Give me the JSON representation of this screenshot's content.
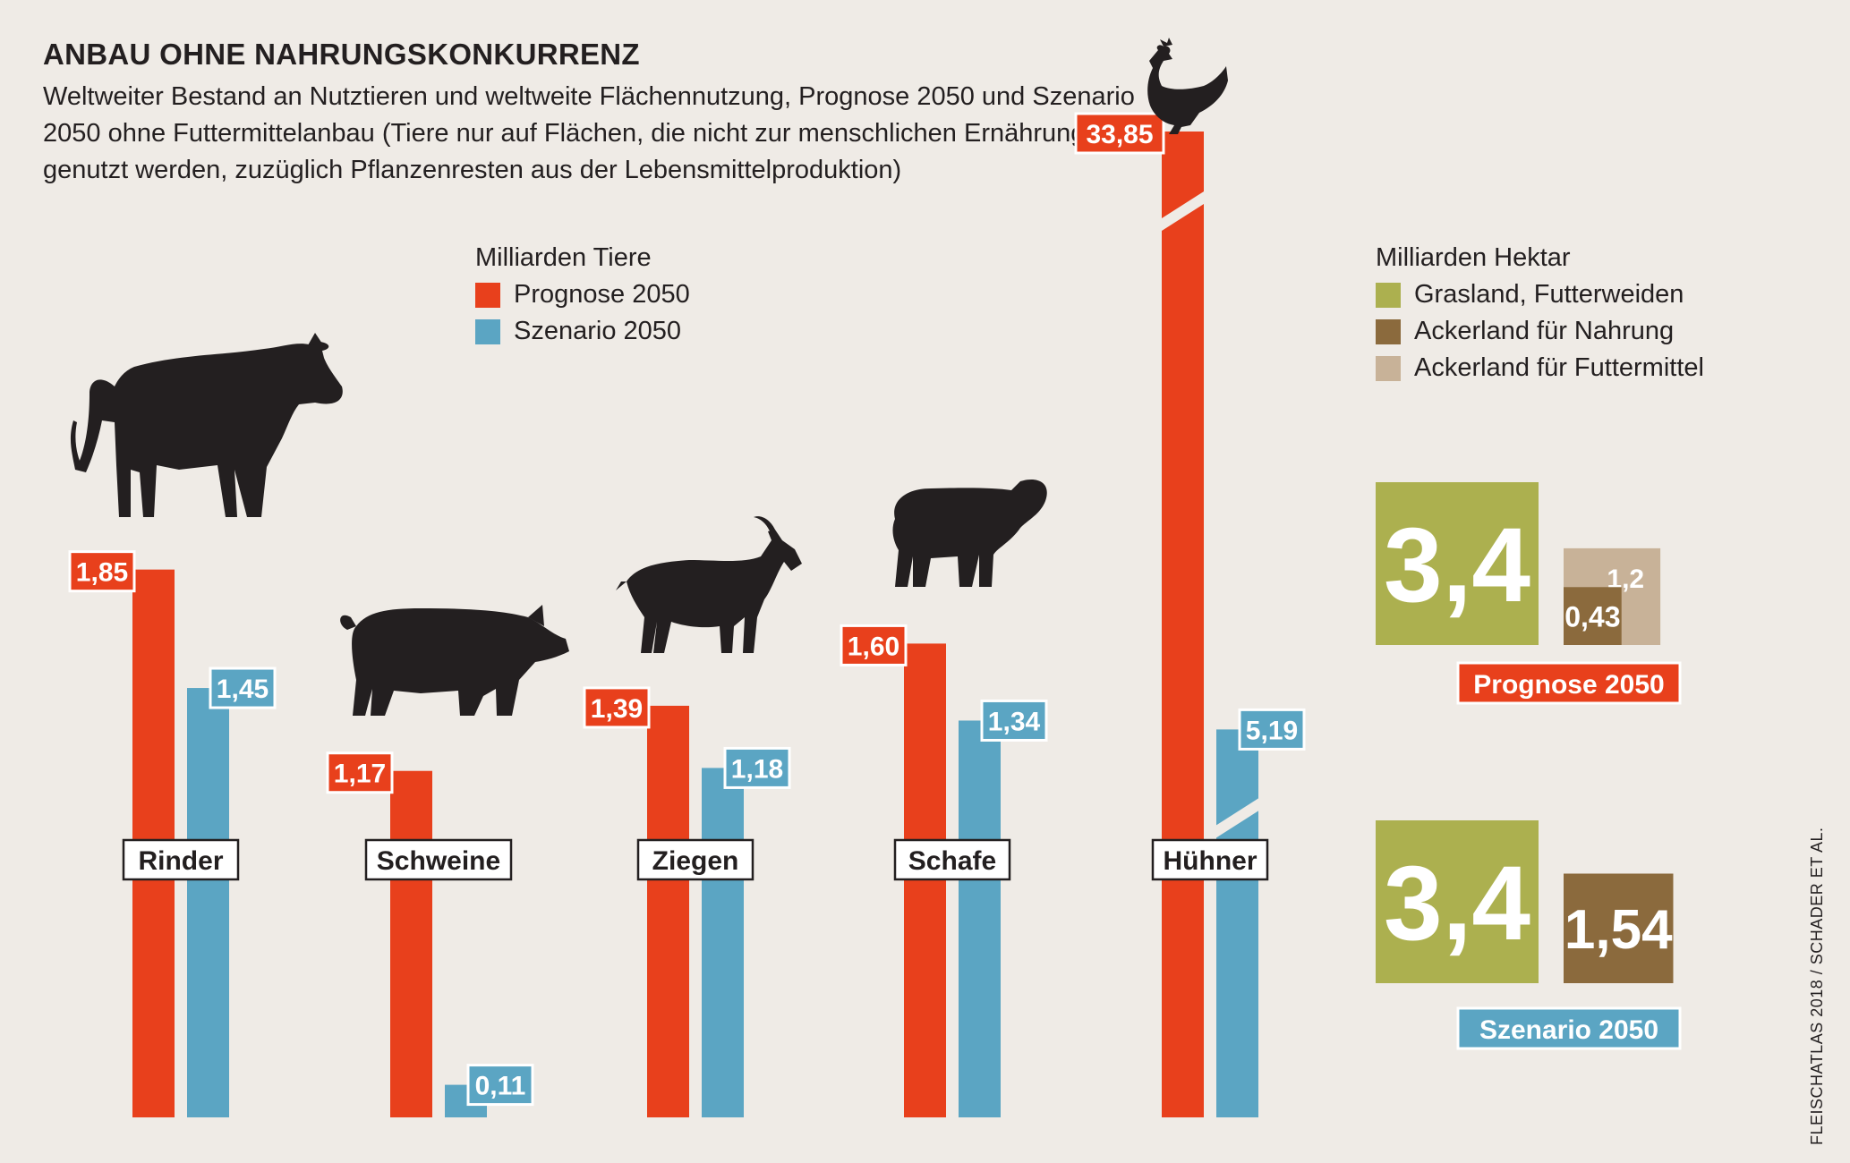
{
  "title": "ANBAU OHNE NAHRUNGSKONKURRENZ",
  "subtitle": "Weltweiter Bestand an Nutztieren und weltweite Flächennutzung, Prognose 2050 und Szenario 2050 ohne Futtermittelanbau (Tiere nur auf Flächen, die nicht zur menschlichen Ernährung genutzt werden, zuzüglich Pflanzenresten aus der Lebensmittelproduktion)",
  "source": "FLEISCHATLAS 2018 / SCHADER ET AL.",
  "colors": {
    "red": "#e8401c",
    "blue": "#5ba5c3",
    "green": "#acb04f",
    "brown": "#8b6a3d",
    "tan": "#c8b298",
    "background": "#efebe6",
    "dark": "#231f20"
  },
  "animals_legend": {
    "title": "Milliarden Tiere",
    "items": [
      {
        "label": "Prognose 2050",
        "color": "#e8401c"
      },
      {
        "label": "Szenario 2050",
        "color": "#5ba5c3"
      }
    ]
  },
  "land_legend": {
    "title": "Milliarden Hektar",
    "items": [
      {
        "label": "Grasland, Futterweiden",
        "color": "#acb04f"
      },
      {
        "label": "Ackerland für Nahrung",
        "color": "#8b6a3d"
      },
      {
        "label": "Ackerland für Futtermittel",
        "color": "#c8b298"
      }
    ]
  },
  "chart_data": [
    {
      "type": "bar",
      "title": "Milliarden Tiere",
      "categories": [
        "Rinder",
        "Schweine",
        "Ziegen",
        "Schafe",
        "Hühner"
      ],
      "icons": [
        "cow-icon",
        "pig-icon",
        "goat-icon",
        "sheep-icon",
        "chicken-icon"
      ],
      "series": [
        {
          "name": "Prognose 2050",
          "values": [
            1.85,
            1.17,
            1.39,
            1.6,
            33.85
          ],
          "labels": [
            "1,85",
            "1,17",
            "1,39",
            "1,60",
            "33,85"
          ]
        },
        {
          "name": "Szenario 2050",
          "values": [
            1.45,
            0.11,
            1.18,
            1.34,
            5.19
          ],
          "labels": [
            "1,45",
            "0,11",
            "1,18",
            "1,34",
            "5,19"
          ]
        }
      ],
      "axis_break_category": "Hühner",
      "ylabel": "Milliarden Tiere"
    },
    {
      "type": "area",
      "title": "Milliarden Hektar",
      "groups": [
        {
          "name": "Prognose 2050",
          "items": [
            {
              "name": "Grasland, Futterweiden",
              "value": 3.4,
              "label": "3,4"
            },
            {
              "name": "Ackerland für Nahrung",
              "value": 0.43,
              "label": "0,43"
            },
            {
              "name": "Ackerland für Futtermittel",
              "value": 1.2,
              "label": "1,2"
            }
          ]
        },
        {
          "name": "Szenario 2050",
          "items": [
            {
              "name": "Grasland, Futterweiden",
              "value": 3.4,
              "label": "3,4"
            },
            {
              "name": "Ackerland für Nahrung",
              "value": 1.54,
              "label": "1,54"
            }
          ]
        }
      ]
    }
  ]
}
